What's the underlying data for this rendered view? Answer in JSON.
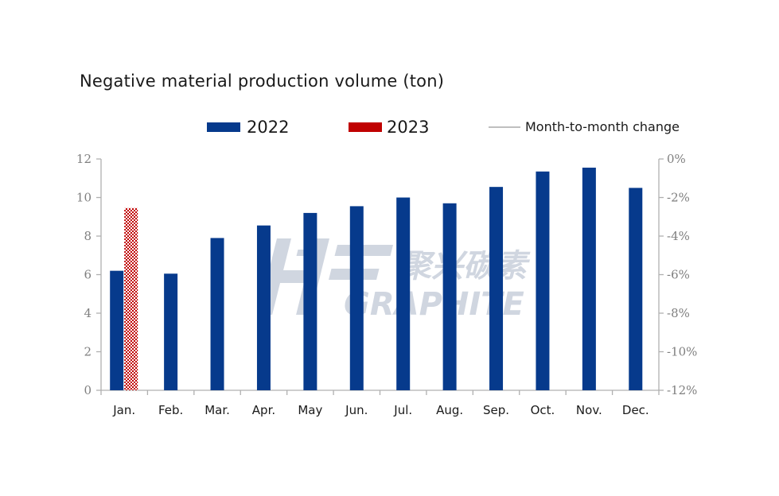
{
  "chart_data": {
    "type": "bar",
    "title": "Negative material production volume (ton)",
    "categories": [
      "Jan.",
      "Feb.",
      "Mar.",
      "Apr.",
      "May",
      "Jun.",
      "Jul.",
      "Aug.",
      "Sep.",
      "Oct.",
      "Nov.",
      "Dec."
    ],
    "series": [
      {
        "name": "2022",
        "color": "#063a8c",
        "values": [
          6.2,
          6.05,
          7.9,
          8.55,
          9.2,
          9.55,
          10.0,
          9.7,
          10.55,
          11.35,
          11.55,
          10.5
        ]
      },
      {
        "name": "2023",
        "color": "#c00000",
        "pattern": "checker",
        "values": [
          9.45,
          null,
          null,
          null,
          null,
          null,
          null,
          null,
          null,
          null,
          null,
          null
        ]
      }
    ],
    "line_series": {
      "name": "Month-to-month change",
      "color": "#bfbfbf",
      "axis": "right",
      "values": []
    },
    "y_left": {
      "ylim": [
        0,
        12
      ],
      "ticks": [
        "0",
        "2",
        "4",
        "6",
        "8",
        "10",
        "12"
      ]
    },
    "y_right": {
      "ylim": [
        -12,
        0
      ],
      "ticks": [
        "-12%",
        "-10%",
        "-8%",
        "-6%",
        "-4%",
        "-2%",
        "0%"
      ]
    },
    "grid": false,
    "legend": "top"
  },
  "watermark": {
    "logo_letters": "HG",
    "chinese": "聚兴碳素",
    "english": "GRAPHITE"
  }
}
